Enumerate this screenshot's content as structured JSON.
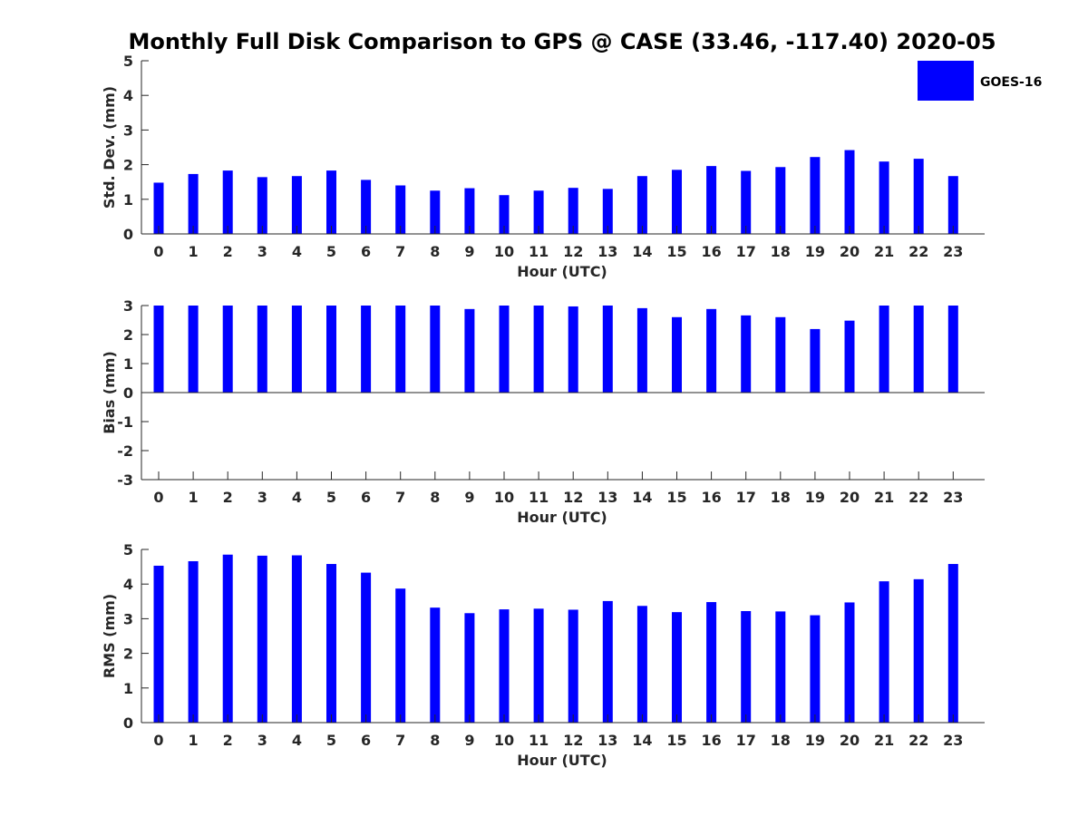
{
  "title": "Monthly Full Disk Comparison to GPS @ CASE (33.46, -117.40) 2020-05",
  "legend": {
    "label": "GOES-16",
    "color": "#0000ff",
    "placement": "top-right"
  },
  "chart_data": [
    {
      "type": "bar",
      "xlabel": "Hour (UTC)",
      "ylabel": "Std. Dev. (mm)",
      "ylim": [
        0,
        5
      ],
      "yticks": [
        0,
        1,
        2,
        3,
        4,
        5
      ],
      "categories": [
        "0",
        "1",
        "2",
        "3",
        "4",
        "5",
        "6",
        "7",
        "8",
        "9",
        "10",
        "11",
        "12",
        "13",
        "14",
        "15",
        "16",
        "17",
        "18",
        "19",
        "20",
        "21",
        "22",
        "23"
      ],
      "series": [
        {
          "color": "#0000ff",
          "values": [
            1.48,
            1.73,
            1.83,
            1.64,
            1.67,
            1.83,
            1.56,
            1.4,
            1.25,
            1.32,
            1.12,
            1.25,
            1.33,
            1.3,
            1.67,
            1.85,
            1.96,
            1.82,
            1.93,
            2.22,
            2.42,
            2.09,
            2.17,
            1.67
          ]
        }
      ],
      "grid": false
    },
    {
      "type": "bar",
      "xlabel": "Hour (UTC)",
      "ylabel": "Bias (mm)",
      "ylim": [
        -3,
        3
      ],
      "yticks": [
        -3,
        -2,
        -1,
        0,
        1,
        2,
        3
      ],
      "categories": [
        "0",
        "1",
        "2",
        "3",
        "4",
        "5",
        "6",
        "7",
        "8",
        "9",
        "10",
        "11",
        "12",
        "13",
        "14",
        "15",
        "16",
        "17",
        "18",
        "19",
        "20",
        "21",
        "22",
        "23"
      ],
      "series": [
        {
          "color": "#0000ff",
          "values": [
            3.0,
            3.0,
            3.0,
            3.0,
            3.0,
            3.0,
            3.0,
            3.0,
            3.0,
            2.88,
            3.0,
            3.0,
            2.97,
            3.0,
            2.91,
            2.6,
            2.88,
            2.66,
            2.6,
            2.19,
            2.48,
            3.0,
            3.0,
            3.0
          ]
        }
      ],
      "grid": false
    },
    {
      "type": "bar",
      "xlabel": "Hour (UTC)",
      "ylabel": "RMS (mm)",
      "ylim": [
        0,
        5
      ],
      "yticks": [
        0,
        1,
        2,
        3,
        4,
        5
      ],
      "categories": [
        "0",
        "1",
        "2",
        "3",
        "4",
        "5",
        "6",
        "7",
        "8",
        "9",
        "10",
        "11",
        "12",
        "13",
        "14",
        "15",
        "16",
        "17",
        "18",
        "19",
        "20",
        "21",
        "22",
        "23"
      ],
      "series": [
        {
          "color": "#0000ff",
          "values": [
            4.53,
            4.66,
            4.85,
            4.82,
            4.83,
            4.58,
            4.33,
            3.87,
            3.32,
            3.16,
            3.27,
            3.29,
            3.26,
            3.51,
            3.37,
            3.19,
            3.48,
            3.22,
            3.21,
            3.1,
            3.47,
            4.08,
            4.14,
            4.58
          ]
        }
      ],
      "grid": false
    }
  ]
}
